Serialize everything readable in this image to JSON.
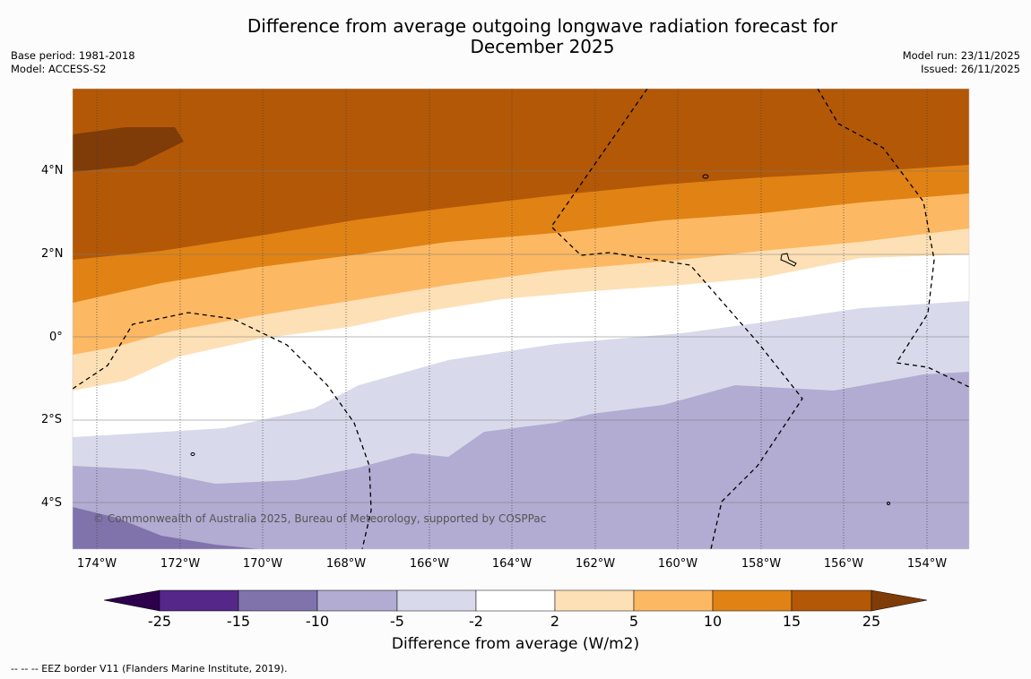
{
  "title": "Difference from average outgoing longwave radiation forecast for December 2025",
  "meta": {
    "base_period": "Base period: 1981-2018",
    "model": "Model: ACCESS-S2",
    "model_run": "Model run: 23/11/2025",
    "issued": "Issued: 26/11/2025"
  },
  "map": {
    "lat_ticks": [
      "4°N",
      "2°N",
      "0°",
      "2°S",
      "4°S"
    ],
    "lon_ticks": [
      "174°W",
      "172°W",
      "170°W",
      "168°W",
      "166°W",
      "164°W",
      "162°W",
      "160°W",
      "158°W",
      "156°W",
      "154°W"
    ],
    "copyright": "© Commonwealth of Australia 2025, Bureau of Meteorology, supported by COSPPac"
  },
  "colorbar": {
    "label": "Difference from average (W/m2)",
    "ticks": [
      "-25",
      "-15",
      "-10",
      "-5",
      "-2",
      "2",
      "5",
      "10",
      "15",
      "25"
    ],
    "colors": [
      "#2d004b",
      "#542788",
      "#8073ac",
      "#b2abd2",
      "#d8daeb",
      "#ffffff",
      "#fee0b6",
      "#fdb863",
      "#e08214",
      "#b35806",
      "#7f3b08"
    ]
  },
  "footnote": "--  --  -- EEZ border V11 (Flanders Marine Institute, 2019)."
}
